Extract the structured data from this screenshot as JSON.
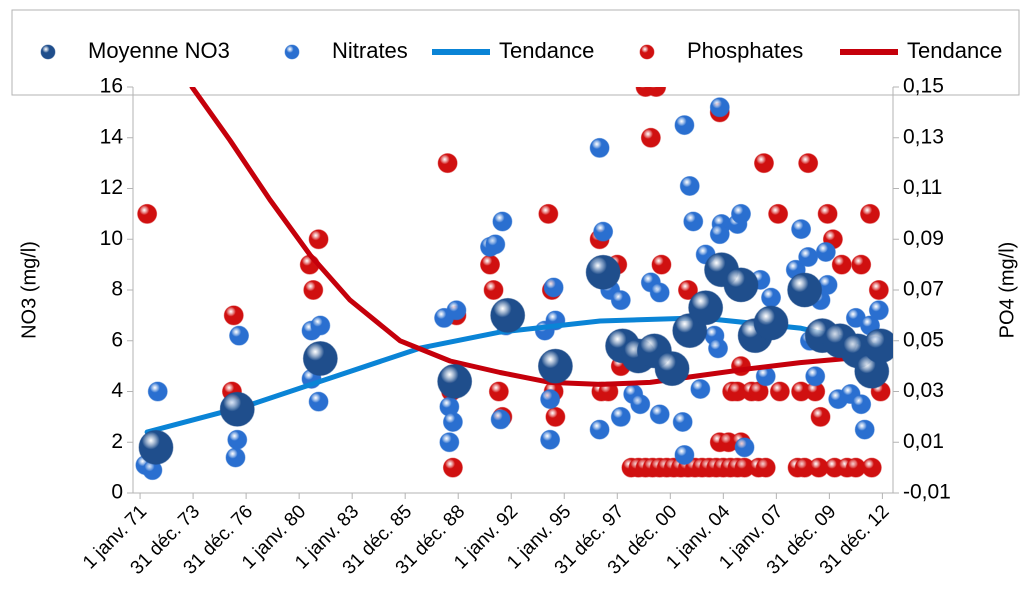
{
  "chart_data": {
    "type": "scatter",
    "y_label": "NO3 (mg/l)",
    "y2_label": "PO4 (mg/l)",
    "xlim": [
      1970.6,
      2013.6
    ],
    "xticks": [
      {
        "value": 1971,
        "label": "1 janv. 71"
      },
      {
        "value": 1974,
        "label": "31 déc. 73"
      },
      {
        "value": 1977,
        "label": "31 déc. 76"
      },
      {
        "value": 1980,
        "label": "1 janv. 80"
      },
      {
        "value": 1983,
        "label": "1 janv. 83"
      },
      {
        "value": 1986,
        "label": "31 déc. 85"
      },
      {
        "value": 1989,
        "label": "31 déc. 88"
      },
      {
        "value": 1992,
        "label": "1 janv. 92"
      },
      {
        "value": 1995,
        "label": "1 janv. 95"
      },
      {
        "value": 1998,
        "label": "31 déc. 97"
      },
      {
        "value": 2001,
        "label": "31 déc. 00"
      },
      {
        "value": 2004,
        "label": "1 janv. 04"
      },
      {
        "value": 2007,
        "label": "1 janv. 07"
      },
      {
        "value": 2010,
        "label": "31 déc. 09"
      },
      {
        "value": 2013,
        "label": "31 déc. 12"
      }
    ],
    "ylim": [
      0,
      16
    ],
    "yticks": [
      0,
      2,
      4,
      6,
      8,
      10,
      12,
      14,
      16
    ],
    "y2lim": [
      -0.01,
      0.15
    ],
    "y2ticks": [
      {
        "value": -0.01,
        "label": "-0,01"
      },
      {
        "value": 0.01,
        "label": "0,01"
      },
      {
        "value": 0.03,
        "label": "0,03"
      },
      {
        "value": 0.05,
        "label": "0,05"
      },
      {
        "value": 0.07,
        "label": "0,07"
      },
      {
        "value": 0.09,
        "label": "0,09"
      },
      {
        "value": 0.11,
        "label": "0,11"
      },
      {
        "value": 0.13,
        "label": "0,13"
      },
      {
        "value": 0.15,
        "label": "0,15"
      }
    ],
    "grid": false,
    "legend": "top",
    "series": [
      {
        "name": "Moyenne NO3",
        "type": "scatter",
        "color": "#1f4e8c",
        "axis": "y",
        "x": [
          1971.9,
          1976.5,
          1981.2,
          1988.8,
          1991.8,
          1994.5,
          1997.2,
          1998.3,
          1999.2,
          2000.1,
          2001.1,
          2002.1,
          2003.0,
          2003.9,
          2005.0,
          2005.8,
          2006.7,
          2008.6,
          2009.6,
          2010.6,
          2011.6,
          2012.4,
          2012.9
        ],
        "values": [
          1.8,
          3.3,
          5.3,
          4.4,
          7.0,
          5.0,
          8.7,
          5.8,
          5.4,
          5.6,
          4.9,
          6.4,
          7.3,
          8.8,
          8.2,
          6.2,
          6.7,
          8.0,
          6.2,
          6.0,
          5.6,
          4.8,
          5.8
        ]
      },
      {
        "name": "Nitrates",
        "type": "scatter",
        "color": "#2a6fd0",
        "axis": "y",
        "x": [
          1971.3,
          1971.7,
          1972.0,
          1976.1,
          1976.5,
          1976.4,
          1976.6,
          1980.7,
          1981.2,
          1980.7,
          1981.1,
          1988.2,
          1988.9,
          1988.5,
          1988.7,
          1988.5,
          1990.8,
          1991.1,
          1991.5,
          1991.4,
          1991.7,
          1993.9,
          1994.2,
          1994.2,
          1994.4,
          1994.5,
          1997.0,
          1997.2,
          1997.0,
          1997.6,
          1998.2,
          1998.2,
          1997.0,
          1998.9,
          1999.3,
          1999.9,
          2000.4,
          2000.4,
          2001.8,
          2002.1,
          2002.3,
          2001.8,
          2001.7,
          2002.7,
          2003.0,
          2003.5,
          2003.7,
          2003.8,
          2003.9,
          2003.8,
          2004.8,
          2005.0,
          2005.2,
          2006.1,
          2006.4,
          2006.7,
          2008.1,
          2008.4,
          2008.8,
          2008.9,
          2009.2,
          2009.5,
          2009.8,
          2009.9,
          2010.5,
          2011.2,
          2011.5,
          2011.8,
          2012.0,
          2012.3,
          2012.6,
          2012.8
        ],
        "values": [
          1.1,
          0.9,
          4.0,
          3.4,
          2.1,
          1.4,
          6.2,
          6.4,
          6.6,
          4.5,
          3.6,
          6.9,
          7.2,
          3.4,
          2.8,
          2.0,
          9.7,
          9.8,
          10.7,
          2.9,
          6.6,
          6.4,
          3.7,
          2.1,
          8.1,
          6.8,
          8.8,
          10.3,
          13.6,
          8.0,
          7.6,
          3.0,
          2.5,
          3.9,
          3.5,
          8.3,
          7.9,
          3.1,
          14.5,
          12.1,
          10.7,
          1.5,
          2.8,
          4.1,
          9.4,
          6.2,
          5.7,
          15.2,
          10.6,
          10.2,
          10.6,
          11.0,
          1.8,
          8.4,
          4.6,
          7.7,
          8.8,
          10.4,
          9.3,
          6.0,
          4.6,
          7.6,
          9.5,
          8.2,
          3.7,
          3.9,
          6.9,
          3.5,
          2.5,
          6.6,
          5.8,
          7.2
        ]
      },
      {
        "name": "Tendance",
        "type": "line",
        "color": "#0a84d6",
        "axis": "y",
        "x": [
          1971.4,
          1977.2,
          1981.75,
          1986.85,
          1991.37,
          1997.03,
          2002.7,
          2008.35,
          2012.88
        ],
        "values": [
          2.4,
          3.47,
          4.53,
          5.71,
          6.34,
          6.78,
          6.9,
          6.5,
          5.75
        ]
      },
      {
        "name": "Phosphates",
        "type": "scatter",
        "color": "#d01010",
        "axis": "y2",
        "x": [
          1971.4,
          1976.3,
          1976.2,
          1980.6,
          1980.8,
          1981.1,
          1988.4,
          1988.7,
          1988.9,
          1988.6,
          1990.8,
          1991.0,
          1991.3,
          1991.5,
          1994.1,
          1994.3,
          1994.4,
          1994.5,
          1997.0,
          1997.1,
          1997.5,
          1998.0,
          1998.2,
          1999.6,
          2000.2,
          1999.9,
          2000.5,
          2002.0,
          2003.8,
          2004.5,
          2005.0,
          2006.3,
          2007.1,
          2007.2,
          2008.8,
          2009.5,
          2009.9,
          2010.2,
          2010.7,
          2011.8,
          2012.3,
          2012.8,
          2012.9,
          1998.8,
          1999.2,
          1999.6,
          2000.0,
          2000.4,
          2000.8,
          2001.2,
          2001.6,
          2002.0,
          2002.4,
          2002.8,
          2003.2,
          2003.6,
          2004.0,
          2004.4,
          2004.8,
          2005.2,
          2006.0,
          2006.4,
          2008.2,
          2008.6,
          2009.4,
          2010.3,
          2011.0,
          2011.5,
          2012.4,
          2003.8,
          2004.3,
          2005.0,
          2004.8,
          2005.6,
          2006.0,
          2008.4,
          2009.2
        ],
        "values": [
          0.1,
          0.06,
          0.03,
          0.08,
          0.07,
          0.09,
          0.12,
          0,
          0.06,
          0.03,
          0.08,
          0.07,
          0.03,
          0.02,
          0.1,
          0.07,
          0.03,
          0.02,
          0.09,
          0.03,
          0.03,
          0.08,
          0.04,
          0.15,
          0.15,
          0.13,
          0.08,
          0.07,
          0.14,
          0.03,
          0.04,
          0.12,
          0.1,
          0.03,
          0.12,
          0.02,
          0.1,
          0.09,
          0.08,
          0.08,
          0.1,
          0.07,
          0.03,
          0,
          0,
          0,
          0,
          0,
          0,
          0,
          0,
          0,
          0,
          0,
          0,
          0,
          0,
          0,
          0,
          0,
          0,
          0,
          0,
          0,
          0,
          0,
          0,
          0,
          0,
          0.01,
          0.01,
          0.01,
          0.03,
          0.03,
          0.03,
          0.03,
          0.03
        ]
      },
      {
        "name": "Tendance",
        "type": "line",
        "color": "#c5000b",
        "axis": "y2",
        "x": [
          1973.94,
          1976.09,
          1978.35,
          1980.62,
          1982.88,
          1985.71,
          1988.54,
          1991.37,
          1994.2,
          1997.03,
          1999.86,
          2002.7,
          2005.5,
          2008.35,
          2012.9
        ],
        "values": [
          0.15,
          0.129,
          0.1055,
          0.0838,
          0.066,
          0.05,
          0.042,
          0.0375,
          0.0336,
          0.0328,
          0.0336,
          0.0363,
          0.039,
          0.0414,
          0.0442
        ]
      }
    ]
  }
}
